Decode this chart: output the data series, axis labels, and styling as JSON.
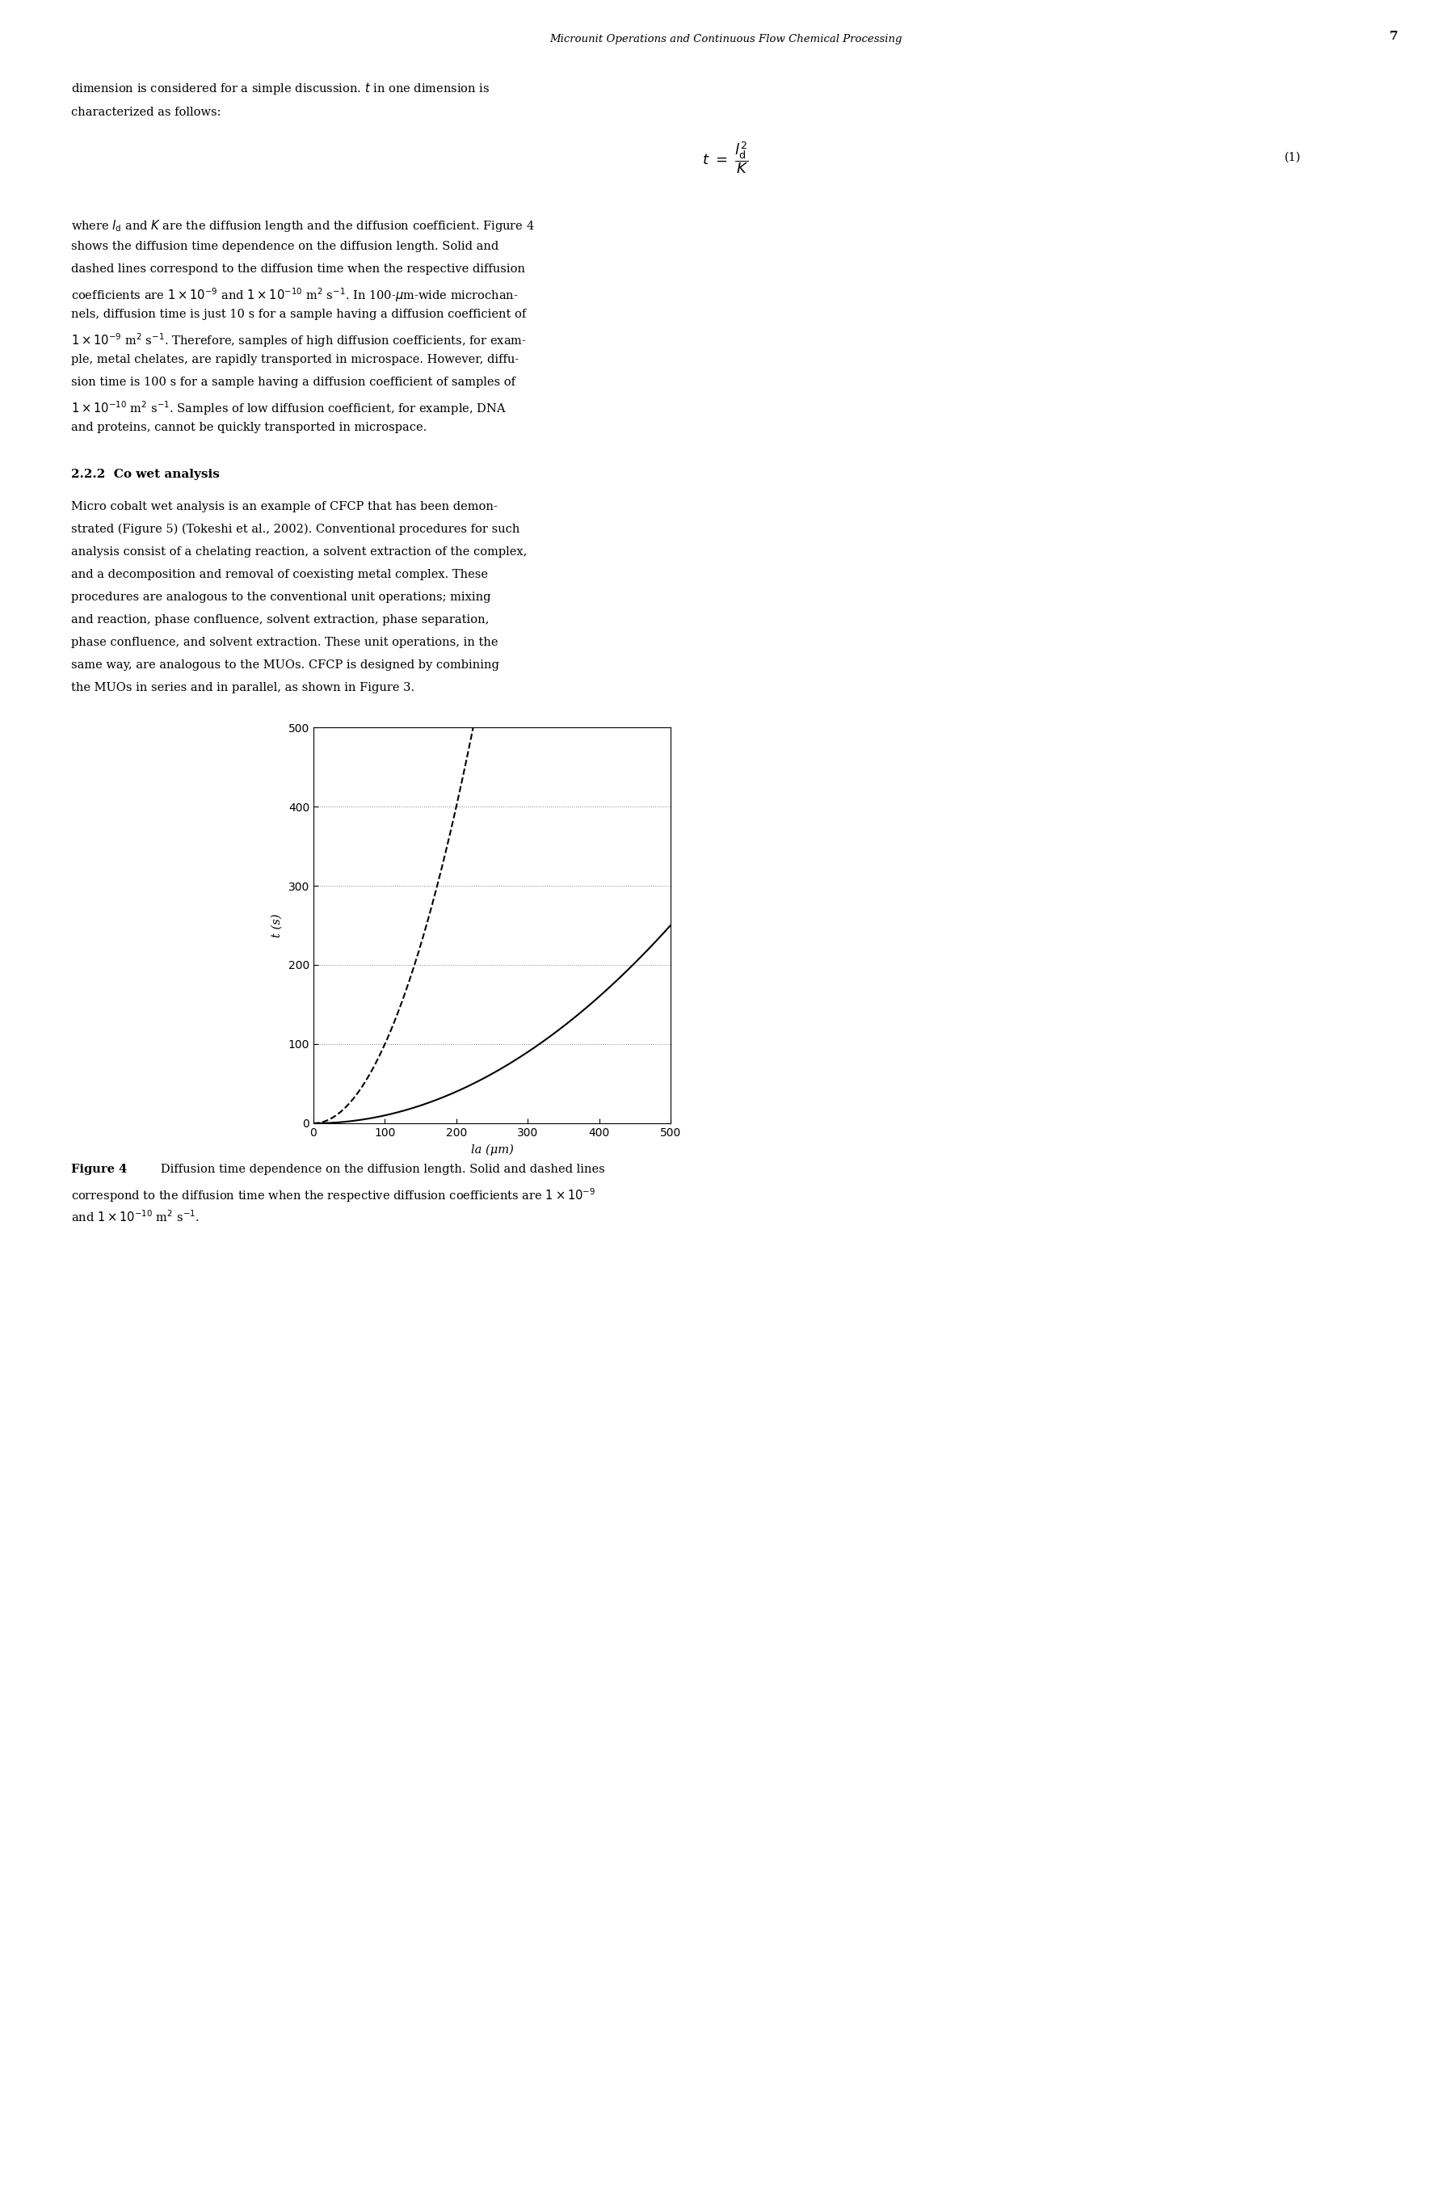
{
  "D_solid": 1e-09,
  "D_dashed": 1e-10,
  "ld_max_um": 500,
  "t_max": 500,
  "xlabel": "la (μm)",
  "ylabel": "t (s)",
  "xlim": [
    0,
    500
  ],
  "ylim": [
    0,
    500
  ],
  "xticks": [
    0,
    100,
    200,
    300,
    400,
    500
  ],
  "yticks": [
    0,
    100,
    200,
    300,
    400,
    500
  ],
  "line_color": "#000000",
  "background_color": "#ffffff",
  "header": "Microunit Operations and Continuous Flow Chemical Processing",
  "page_num": "7"
}
